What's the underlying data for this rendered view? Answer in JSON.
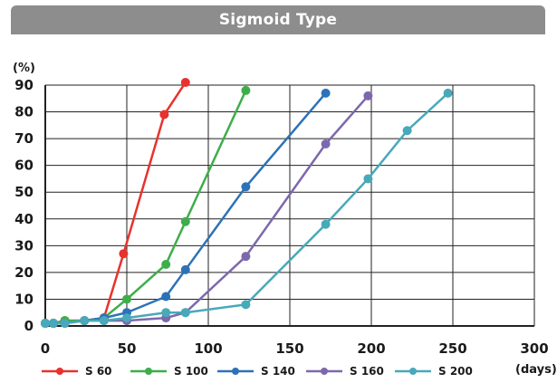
{
  "chart_data": {
    "type": "line",
    "title": "Sigmoid Type",
    "ylabel": "(%)",
    "xlabel": "(days)",
    "xlim": [
      0,
      300
    ],
    "ylim": [
      0,
      90
    ],
    "x_ticks": [
      "0",
      "50",
      "100",
      "150",
      "200",
      "250",
      "300"
    ],
    "y_ticks": [
      "0",
      "10",
      "20",
      "30",
      "40",
      "50",
      "60",
      "70",
      "80",
      "90"
    ],
    "grid": true,
    "legend_position": "bottom",
    "series": [
      {
        "name": "S 60",
        "color": "#e8322d",
        "x": [
          0,
          5,
          12,
          24,
          36,
          48,
          73,
          86
        ],
        "y": [
          1,
          1,
          2,
          2,
          3,
          27,
          79,
          91
        ]
      },
      {
        "name": "S 100",
        "color": "#3dae4a",
        "x": [
          0,
          5,
          12,
          24,
          36,
          50,
          74,
          86,
          123
        ],
        "y": [
          1,
          1,
          2,
          2,
          3,
          10,
          23,
          39,
          88
        ]
      },
      {
        "name": "S 140",
        "color": "#2d72b8",
        "x": [
          0,
          5,
          12,
          24,
          36,
          50,
          74,
          86,
          123,
          172
        ],
        "y": [
          1,
          1,
          1,
          2,
          3,
          5,
          11,
          21,
          52,
          87
        ]
      },
      {
        "name": "S 160",
        "color": "#7d68ad",
        "x": [
          0,
          5,
          12,
          24,
          36,
          50,
          74,
          86,
          123,
          172,
          198
        ],
        "y": [
          1,
          1,
          1,
          2,
          2,
          2,
          3,
          5,
          26,
          68,
          86
        ]
      },
      {
        "name": "S 200",
        "color": "#47a9b9",
        "x": [
          0,
          5,
          12,
          24,
          36,
          50,
          74,
          86,
          123,
          172,
          198,
          222,
          247
        ],
        "y": [
          1,
          1,
          1,
          2,
          2,
          3,
          5,
          5,
          8,
          38,
          55,
          73,
          87
        ]
      }
    ]
  }
}
